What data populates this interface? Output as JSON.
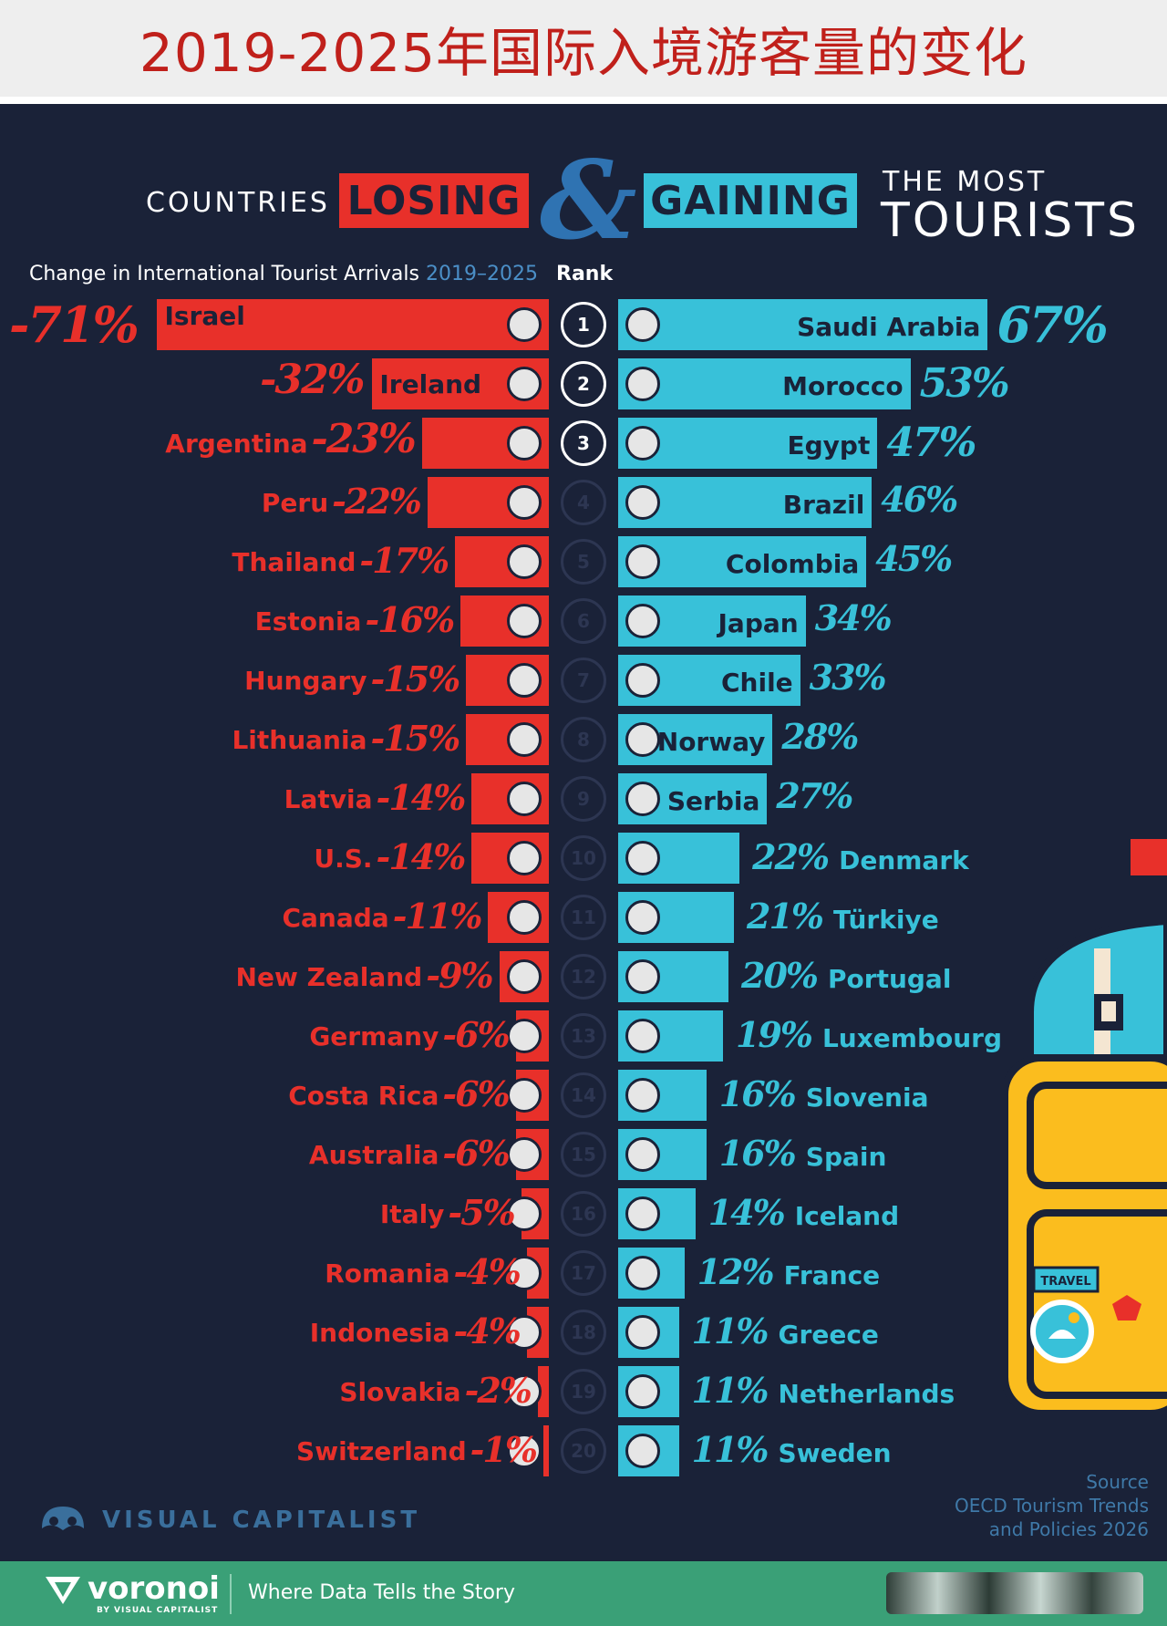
{
  "page": {
    "banner_title": "2019-2025年国际入境游客量的变化",
    "header": {
      "countries": "COUNTRIES",
      "losing": "LOSING",
      "ampersand": "&",
      "gaining": "GAINING",
      "the_most": "THE MOST",
      "tourists": "TOURISTS"
    },
    "subtitle": "Change in International Tourist Arrivals",
    "subtitle_years": "2019–2025",
    "rank_label": "Rank",
    "brand": "VISUAL CAPITALIST",
    "source_lines": [
      "Source",
      "OECD Tourism Trends",
      "and Policies 2026"
    ],
    "footer": {
      "logo": "voronoi",
      "by": "BY VISUAL CAPITALIST",
      "tagline": "Where Data Tells the Story"
    },
    "suitcase_sticker": "TRAVEL",
    "colors": {
      "background": "#1a2238",
      "losing": "#e8302a",
      "gaining": "#38c1d9",
      "footer": "#3aa077",
      "title_red": "#c0201b"
    }
  },
  "chart_data": {
    "type": "bar",
    "orientation": "horizontal-diverging",
    "title": "COUNTRIES LOSING & GAINING THE MOST TOURISTS",
    "subtitle": "Change in International Tourist Arrivals 2019–2025",
    "unit": "%",
    "ranks": [
      1,
      2,
      3,
      4,
      5,
      6,
      7,
      8,
      9,
      10,
      11,
      12,
      13,
      14,
      15,
      16,
      17,
      18,
      19,
      20
    ],
    "series": [
      {
        "name": "LOSING",
        "color": "#e8302a",
        "categories": [
          "Israel",
          "Ireland",
          "Argentina",
          "Peru",
          "Thailand",
          "Estonia",
          "Hungary",
          "Lithuania",
          "Latvia",
          "U.S.",
          "Canada",
          "New Zealand",
          "Germany",
          "Costa Rica",
          "Australia",
          "Italy",
          "Romania",
          "Indonesia",
          "Slovakia",
          "Switzerland"
        ],
        "values": [
          -71,
          -32,
          -23,
          -22,
          -17,
          -16,
          -15,
          -15,
          -14,
          -14,
          -11,
          -9,
          -6,
          -6,
          -6,
          -5,
          -4,
          -4,
          -2,
          -1
        ],
        "labels": [
          "-71%",
          "-32%",
          "-23%",
          "-22%",
          "-17%",
          "-16%",
          "-15%",
          "-15%",
          "-14%",
          "-14%",
          "-11%",
          "-9%",
          "-6%",
          "-6%",
          "-6%",
          "-5%",
          "-4%",
          "-4%",
          "-2%",
          "-1%"
        ]
      },
      {
        "name": "GAINING",
        "color": "#38c1d9",
        "categories": [
          "Saudi Arabia",
          "Morocco",
          "Egypt",
          "Brazil",
          "Colombia",
          "Japan",
          "Chile",
          "Norway",
          "Serbia",
          "Denmark",
          "Türkiye",
          "Portugal",
          "Luxembourg",
          "Slovenia",
          "Spain",
          "Iceland",
          "France",
          "Greece",
          "Netherlands",
          "Sweden"
        ],
        "values": [
          67,
          53,
          47,
          46,
          45,
          34,
          33,
          28,
          27,
          22,
          21,
          20,
          19,
          16,
          16,
          14,
          12,
          11,
          11,
          11
        ],
        "labels": [
          "67%",
          "53%",
          "47%",
          "46%",
          "45%",
          "34%",
          "33%",
          "28%",
          "27%",
          "22%",
          "21%",
          "20%",
          "19%",
          "16%",
          "16%",
          "14%",
          "12%",
          "11%",
          "11%",
          "11%"
        ]
      }
    ],
    "source": "OECD Tourism Trends and Policies 2026"
  }
}
